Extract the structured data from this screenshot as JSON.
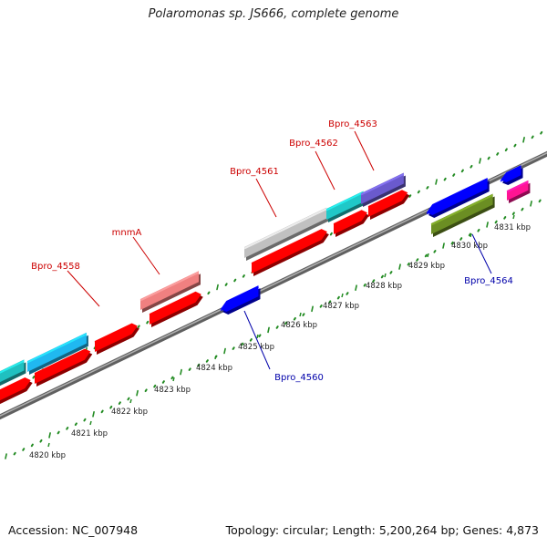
{
  "title": "Polaromonas sp. JS666, complete genome",
  "footer": {
    "accession": "Accession: NC_007948",
    "summary": "Topology: circular; Length: 5,200,264 bp; Genes: 4,873"
  },
  "colors": {
    "axis": "#808080",
    "tick_green": "#228b22",
    "label_forward": "#cc0000",
    "label_reverse": "#0000aa"
  },
  "kbp_labels": [
    "4820 kbp",
    "4821 kbp",
    "4822 kbp",
    "4823 kbp",
    "4824 kbp",
    "4825 kbp",
    "4826 kbp",
    "4827 kbp",
    "4828 kbp",
    "4829 kbp",
    "4830 kbp",
    "4831 kbp"
  ],
  "gene_labels": [
    {
      "id": "Bpro_4558",
      "strand": "forward"
    },
    {
      "id": "mnmA",
      "strand": "forward"
    },
    {
      "id": "Bpro_4561",
      "strand": "forward"
    },
    {
      "id": "Bpro_4562",
      "strand": "forward"
    },
    {
      "id": "Bpro_4563",
      "strand": "forward"
    },
    {
      "id": "Bpro_4560",
      "strand": "reverse"
    },
    {
      "id": "Bpro_4564",
      "strand": "reverse"
    }
  ],
  "features": [
    {
      "name": "cds-forward-1",
      "color": "#ff0000"
    },
    {
      "name": "cds-forward-2",
      "color": "#ff0000"
    },
    {
      "name": "cds-forward-3",
      "color": "#ff0000"
    },
    {
      "name": "cds-forward-4",
      "color": "#ff0000"
    },
    {
      "name": "cds-forward-5",
      "color": "#ff0000"
    },
    {
      "name": "cds-forward-6",
      "color": "#ff0000"
    },
    {
      "name": "cds-forward-7",
      "color": "#ff0000"
    },
    {
      "name": "cog-forward-1",
      "color": "#20c0c0"
    },
    {
      "name": "cog-forward-2",
      "color": "#20b8f0"
    },
    {
      "name": "cog-forward-3",
      "color": "#f08080"
    },
    {
      "name": "cog-forward-4",
      "color": "#c0c0c0"
    },
    {
      "name": "cog-forward-5",
      "color": "#20c8c8"
    },
    {
      "name": "cog-forward-6",
      "color": "#6a5acd"
    },
    {
      "name": "cds-reverse-1",
      "color": "#0000ff"
    },
    {
      "name": "cds-reverse-2",
      "color": "#0000ff"
    },
    {
      "name": "cds-reverse-3",
      "color": "#0000ff"
    },
    {
      "name": "cog-reverse-1",
      "color": "#6b8e23"
    },
    {
      "name": "cog-reverse-2",
      "color": "#ff1493"
    }
  ]
}
